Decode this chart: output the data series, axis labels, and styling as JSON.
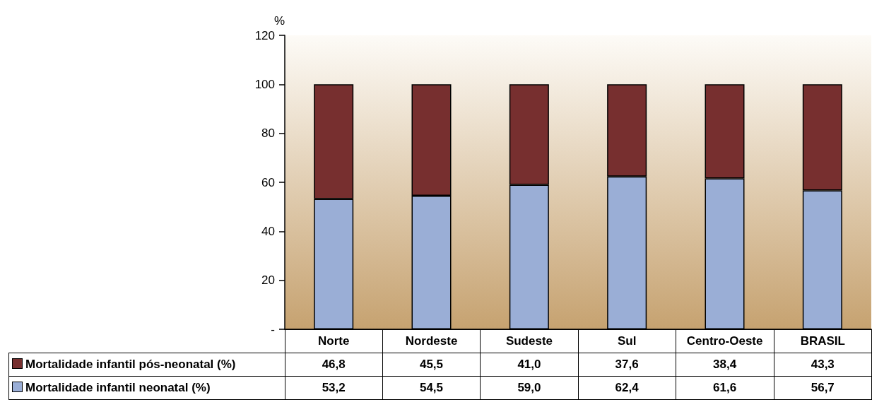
{
  "chart_data": {
    "type": "bar",
    "stacked": true,
    "ylabel": "%",
    "categories": [
      "Norte",
      "Nordeste",
      "Sudeste",
      "Sul",
      "Centro-Oeste",
      "BRASIL"
    ],
    "series": [
      {
        "name": "Mortalidade infantil neonatal (%)",
        "color": "#9aaed6",
        "values": [
          53.2,
          54.5,
          59.0,
          62.4,
          61.6,
          56.7
        ],
        "value_labels": [
          "53,2",
          "54,5",
          "59,0",
          "62,4",
          "61,6",
          "56,7"
        ]
      },
      {
        "name": "Mortalidade infantil pós-neonatal (%)",
        "color": "#772f2f",
        "values": [
          46.8,
          45.5,
          41.0,
          37.6,
          38.4,
          43.3
        ],
        "value_labels": [
          "46,8",
          "45,5",
          "41,0",
          "37,6",
          "38,4",
          "43,3"
        ]
      }
    ],
    "ylim": [
      0,
      120
    ],
    "yticks": [
      {
        "value": 0,
        "label": "-"
      },
      20,
      40,
      60,
      80,
      100,
      120
    ],
    "grid": false,
    "legend": "bottom left"
  }
}
